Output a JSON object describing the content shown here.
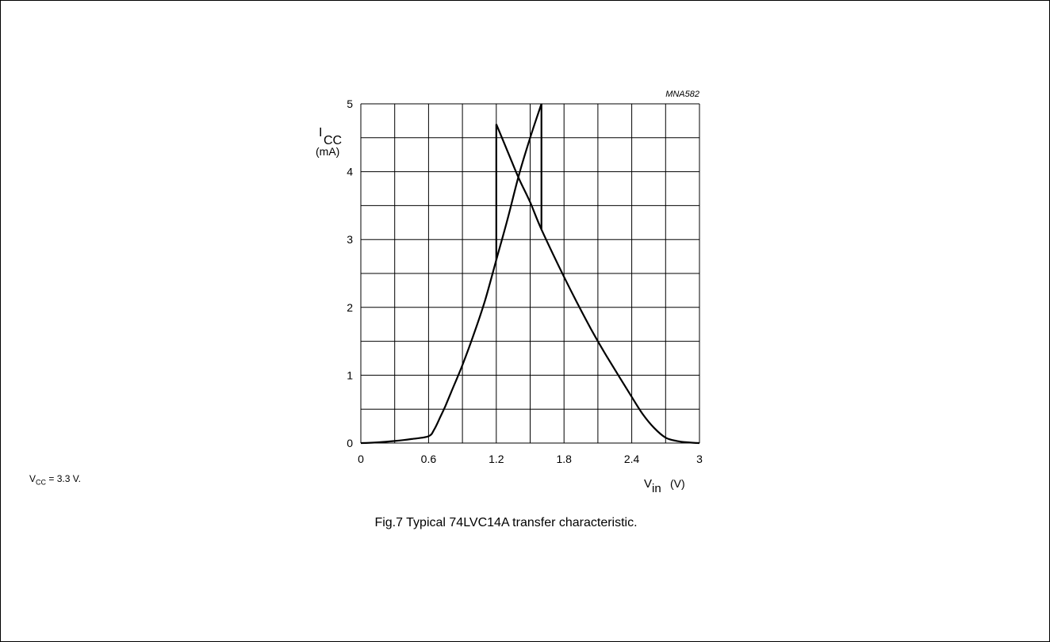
{
  "chart_data": {
    "type": "line",
    "code": "MNA582",
    "ylabel_main": "I",
    "ylabel_sub": "CC",
    "yunit": "(mA)",
    "xlabel_main": "V",
    "xlabel_sub": "in",
    "xunit": "(V)",
    "xlim": [
      0,
      3
    ],
    "ylim": [
      0,
      5
    ],
    "xticks": [
      "0",
      "0.6",
      "1.2",
      "1.8",
      "2.4",
      "3"
    ],
    "yticks": [
      "0",
      "1",
      "2",
      "3",
      "4",
      "5"
    ],
    "grid": true,
    "series": [
      {
        "x": [
          0.0,
          0.15,
          0.3,
          0.45,
          0.6,
          0.65,
          0.7,
          0.75,
          0.8,
          0.9,
          1.0,
          1.1,
          1.2,
          1.3,
          1.4,
          1.5,
          1.6
        ],
        "y": [
          0.0,
          0.01,
          0.03,
          0.06,
          0.1,
          0.2,
          0.37,
          0.55,
          0.75,
          1.15,
          1.6,
          2.1,
          2.7,
          3.3,
          3.95,
          4.5,
          5.0
        ]
      },
      {
        "x": [
          1.2,
          1.3,
          1.4,
          1.5,
          1.6,
          1.8,
          2.0,
          2.1,
          2.2,
          2.4,
          2.5,
          2.6,
          2.7,
          2.8,
          2.9,
          3.0
        ],
        "y": [
          4.7,
          4.3,
          3.9,
          3.55,
          3.15,
          2.45,
          1.8,
          1.5,
          1.22,
          0.68,
          0.42,
          0.22,
          0.08,
          0.03,
          0.01,
          0.0
        ]
      }
    ],
    "verticals": [
      {
        "x": 1.2,
        "y": [
          2.7,
          4.7
        ]
      },
      {
        "x": 1.6,
        "y": [
          3.15,
          5.0
        ]
      }
    ]
  },
  "note": {
    "main": "V",
    "sub": "CC",
    "rest": " = 3.3 V."
  },
  "caption": "Fig.7  Typical 74LVC14A transfer characteristic."
}
